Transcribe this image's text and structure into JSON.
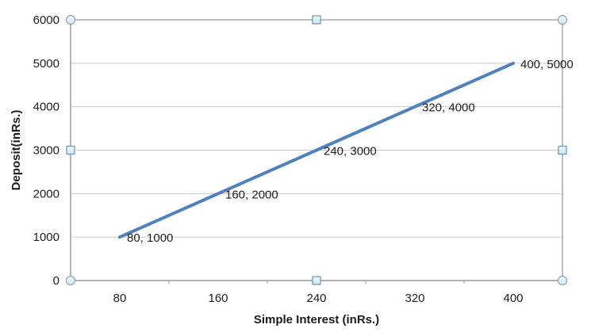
{
  "chart_data": {
    "type": "line",
    "title": "",
    "categories": [
      "80",
      "160",
      "240",
      "320",
      "400"
    ],
    "values": [
      1000,
      2000,
      3000,
      4000,
      5000
    ],
    "data_labels": [
      "80, 1000",
      "160, 2000",
      "240, 3000",
      "320, 4000",
      "400, 5000"
    ],
    "xlabel": "Simple Interest (inRs.)",
    "ylabel": "Deposit(inRs.)",
    "y_ticks": [
      "0",
      "1000",
      "2000",
      "3000",
      "4000",
      "5000",
      "6000"
    ],
    "ylim": [
      0,
      6000
    ],
    "y_tick_step": 1000,
    "grid": true,
    "legend": "none",
    "colors": {
      "series_line": "#4f81bd",
      "gridline": "#c9c9c9",
      "axis": "#a3a3a3",
      "text": "#1d1d1d",
      "handle_fill": "#d9edf6",
      "handle_fill_light": "#f0f9fc",
      "handle_square_border": "#6f9dc2",
      "handle_circle_border": "#8fa6b2"
    }
  },
  "state": {
    "chart_selected": true
  }
}
